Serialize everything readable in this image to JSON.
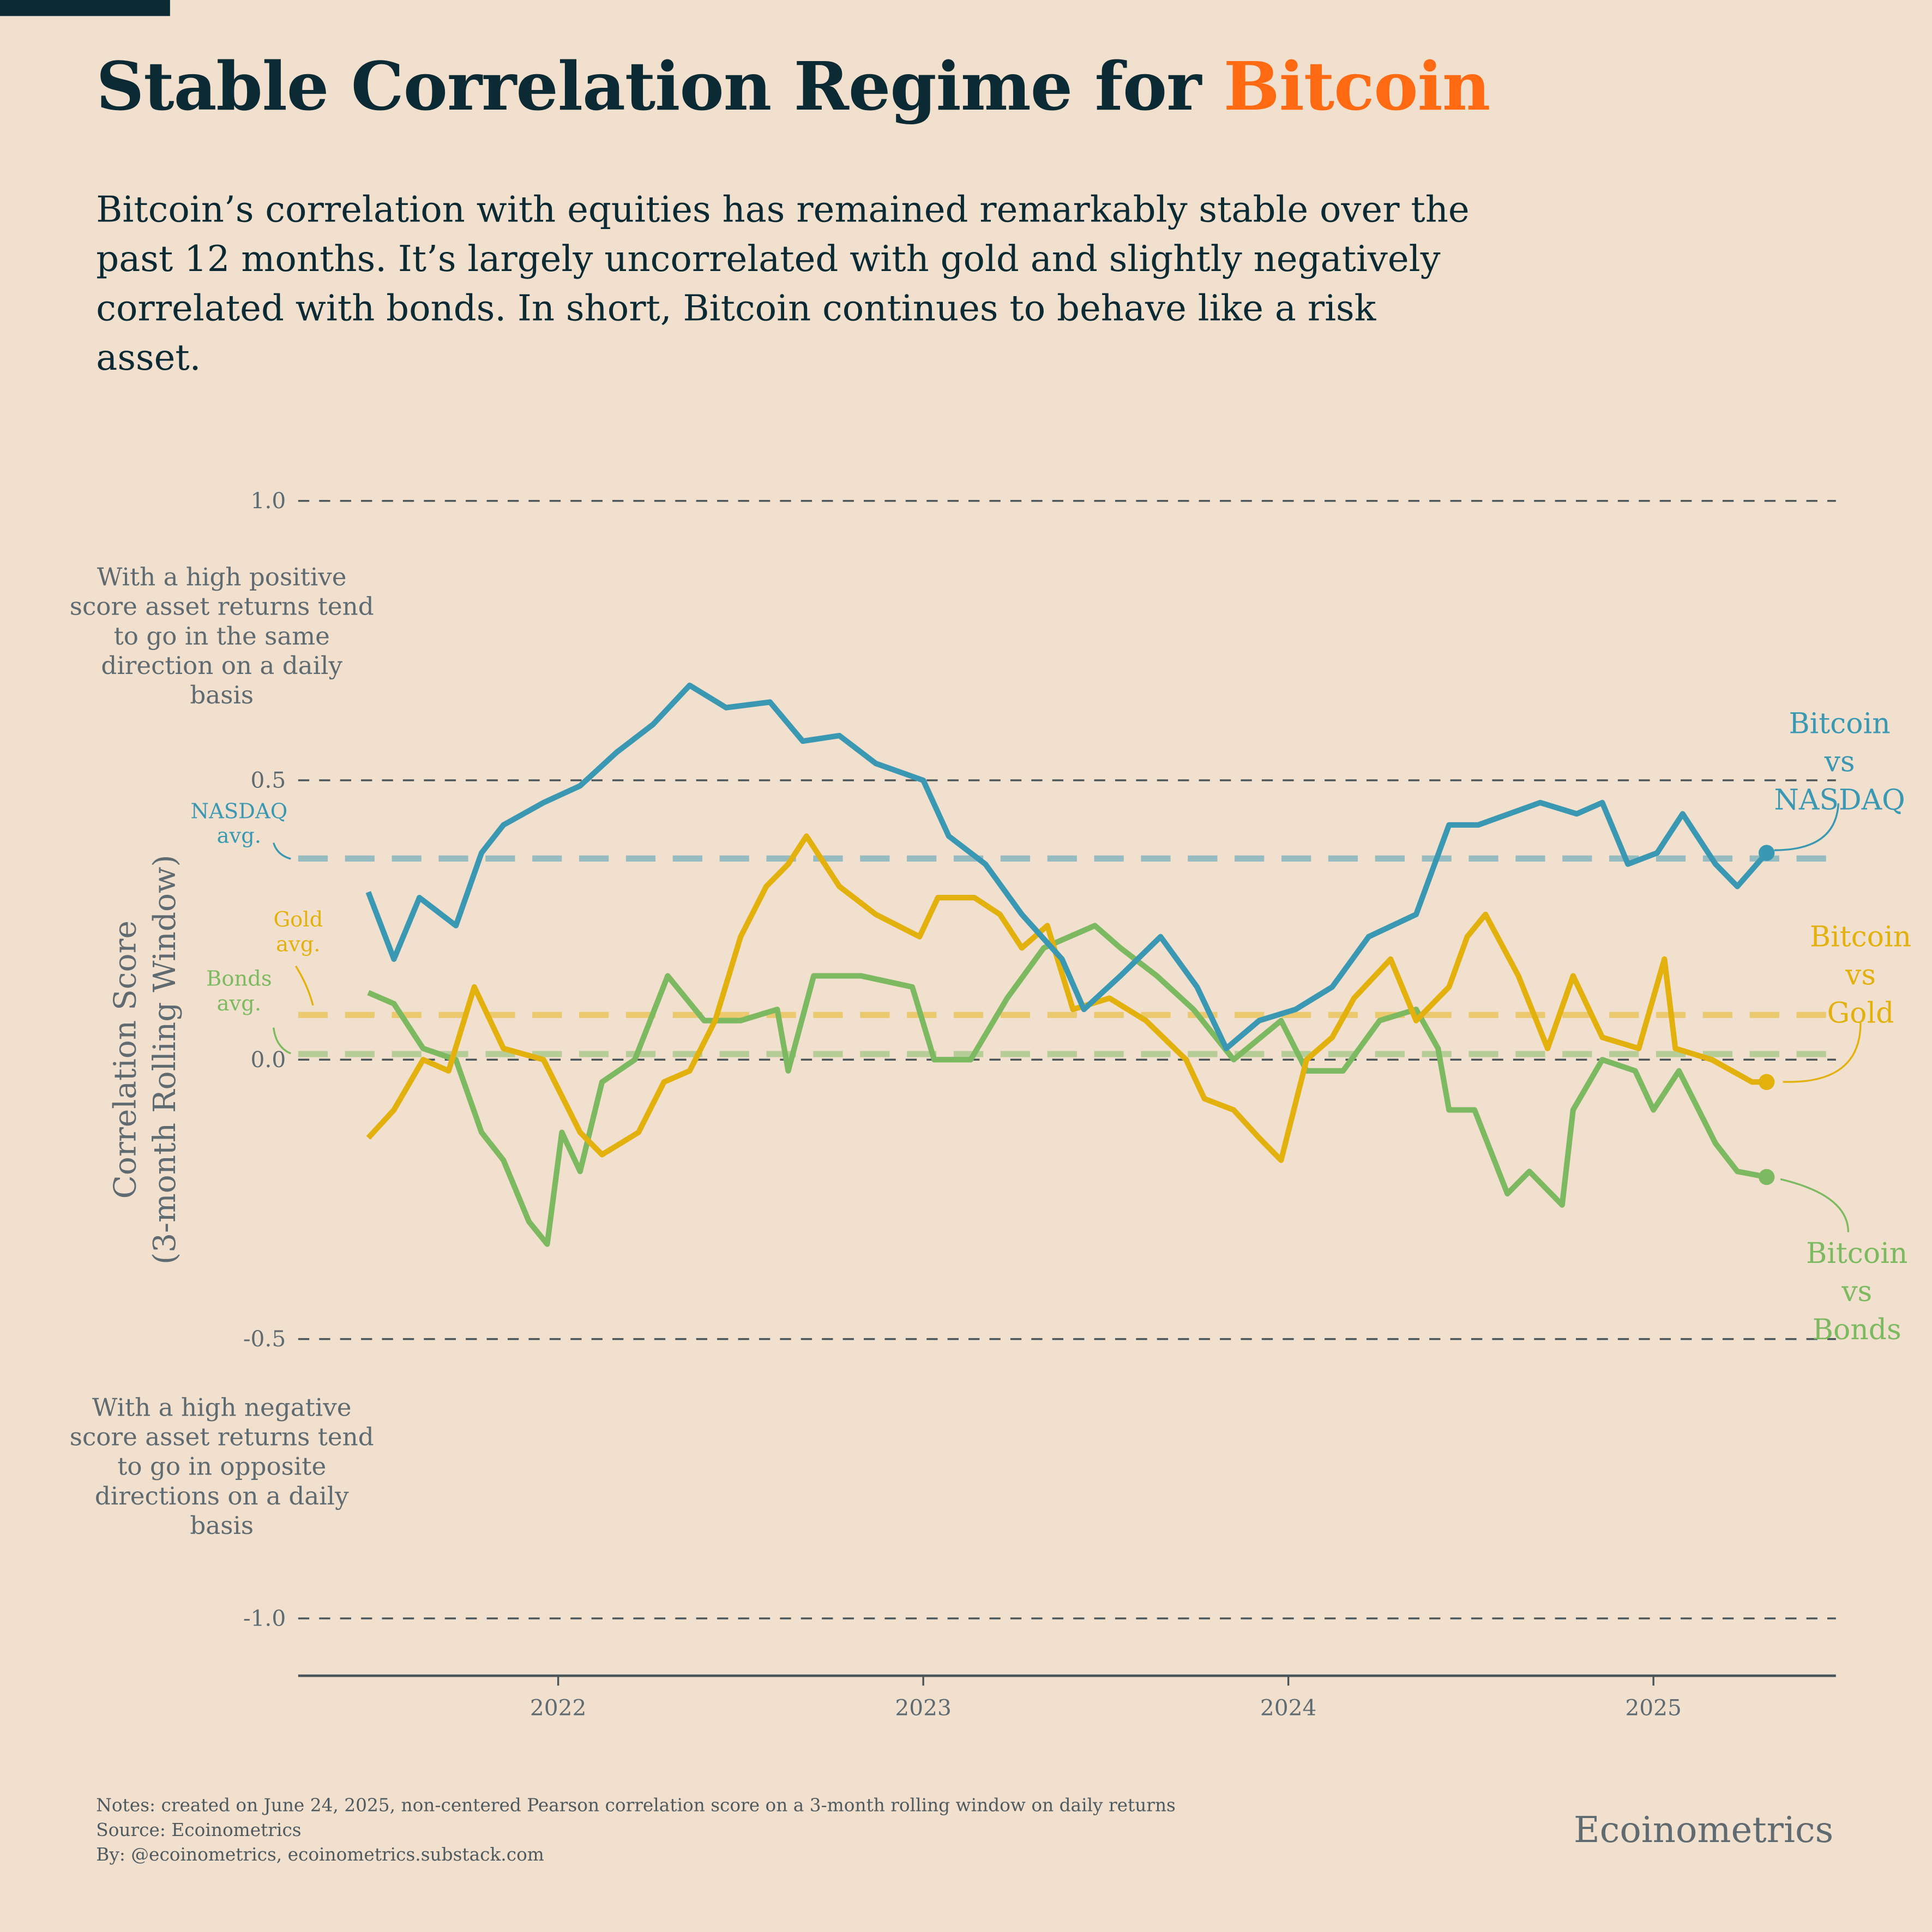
{
  "title": {
    "prefix": "Stable Correlation Regime for ",
    "highlight": "Bitcoin"
  },
  "subtitle": "Bitcoin’s correlation with equities has remained remarkably stable over the past 12 months. It’s largely uncorrelated with gold and slightly negatively correlated with bonds. In short, Bitcoin continues to behave like a risk asset.",
  "annotations": {
    "positive": "With a high positive score asset returns tend to go in the same direction on a daily basis",
    "negative": "With a high negative score asset returns tend to go in opposite directions on a daily basis"
  },
  "footer": {
    "notes": "Notes: created on June 24, 2025, non-centered Pearson correlation score on a 3-month rolling window on daily returns",
    "source": "Source: Ecoinometrics",
    "by": "By: @ecoinometrics, ecoinometrics.substack.com",
    "brand": "Ecoinometrics"
  },
  "colors": {
    "background": "#f2e0cf",
    "title": "#0b2a33",
    "highlight": "#ff6a13",
    "nasdaq": "#3a98b3",
    "gold": "#e3b10e",
    "bonds": "#7cb960"
  },
  "chart_data": {
    "type": "line",
    "ylabel": "Correlation Score\n(3-month Rolling Window)",
    "ylim": [
      -1.0,
      1.0
    ],
    "yticks": [
      1.0,
      0.5,
      0.0,
      -0.5,
      -1.0
    ],
    "ytick_labels": [
      "1.0",
      "0.5",
      "0.0",
      "-0.5",
      "-1.0"
    ],
    "xticks": [
      2022,
      2023,
      2024,
      2025
    ],
    "xtick_labels": [
      "2022",
      "2023",
      "2024",
      "2025"
    ],
    "xlim": [
      2021.3,
      2025.5
    ],
    "grid": "horizontal dashed",
    "series": [
      {
        "key": "nasdaq",
        "name": "Bitcoin vs NASDAQ",
        "avg_label": "NASDAQ avg.",
        "avg": 0.36,
        "x": [
          2021.48,
          2021.55,
          2021.62,
          2021.72,
          2021.79,
          2021.85,
          2021.96,
          2022.06,
          2022.16,
          2022.26,
          2022.36,
          2022.46,
          2022.58,
          2022.67,
          2022.77,
          2022.87,
          2023.0,
          2023.07,
          2023.17,
          2023.27,
          2023.38,
          2023.44,
          2023.54,
          2023.65,
          2023.75,
          2023.83,
          2023.92,
          2024.02,
          2024.12,
          2024.22,
          2024.35,
          2024.44,
          2024.52,
          2024.69,
          2024.79,
          2024.86,
          2024.93,
          2025.01,
          2025.08,
          2025.17,
          2025.23,
          2025.31
        ],
        "y": [
          0.3,
          0.18,
          0.29,
          0.24,
          0.37,
          0.42,
          0.46,
          0.49,
          0.55,
          0.6,
          0.67,
          0.63,
          0.64,
          0.57,
          0.58,
          0.53,
          0.5,
          0.4,
          0.35,
          0.26,
          0.18,
          0.09,
          0.15,
          0.22,
          0.13,
          0.02,
          0.07,
          0.09,
          0.13,
          0.22,
          0.26,
          0.42,
          0.42,
          0.46,
          0.44,
          0.46,
          0.35,
          0.37,
          0.44,
          0.35,
          0.31,
          0.37
        ]
      },
      {
        "key": "gold",
        "name": "Bitcoin vs Gold",
        "avg_label": "Gold avg.",
        "avg": 0.08,
        "x": [
          2021.48,
          2021.55,
          2021.63,
          2021.7,
          2021.77,
          2021.85,
          2021.96,
          2022.06,
          2022.12,
          2022.22,
          2022.29,
          2022.36,
          2022.43,
          2022.5,
          2022.57,
          2022.63,
          2022.68,
          2022.77,
          2022.87,
          2022.99,
          2023.04,
          2023.14,
          2023.21,
          2023.27,
          2023.34,
          2023.41,
          2023.51,
          2023.61,
          2023.72,
          2023.77,
          2023.85,
          2023.92,
          2023.98,
          2024.05,
          2024.12,
          2024.18,
          2024.28,
          2024.35,
          2024.44,
          2024.49,
          2024.54,
          2024.63,
          2024.71,
          2024.78,
          2024.86,
          2024.96,
          2025.03,
          2025.06,
          2025.16,
          2025.27,
          2025.31
        ],
        "y": [
          -0.14,
          -0.09,
          0.0,
          -0.02,
          0.13,
          0.02,
          0.0,
          -0.13,
          -0.17,
          -0.13,
          -0.04,
          -0.02,
          0.07,
          0.22,
          0.31,
          0.35,
          0.4,
          0.31,
          0.26,
          0.22,
          0.29,
          0.29,
          0.26,
          0.2,
          0.24,
          0.09,
          0.11,
          0.07,
          0.0,
          -0.07,
          -0.09,
          -0.14,
          -0.18,
          0.0,
          0.04,
          0.11,
          0.18,
          0.07,
          0.13,
          0.22,
          0.26,
          0.15,
          0.02,
          0.15,
          0.04,
          0.02,
          0.18,
          0.02,
          0.0,
          -0.04,
          -0.04
        ]
      },
      {
        "key": "bonds",
        "name": "Bitcoin vs Bonds",
        "avg_label": "Bonds avg.",
        "avg": 0.01,
        "x": [
          2021.48,
          2021.55,
          2021.63,
          2021.72,
          2021.79,
          2021.85,
          2021.92,
          2021.97,
          2022.01,
          2022.06,
          2022.12,
          2022.21,
          2022.3,
          2022.4,
          2022.5,
          2022.6,
          2022.63,
          2022.7,
          2022.83,
          2022.97,
          2023.03,
          2023.13,
          2023.23,
          2023.33,
          2023.47,
          2023.54,
          2023.64,
          2023.74,
          2023.85,
          2023.98,
          2024.05,
          2024.15,
          2024.25,
          2024.35,
          2024.41,
          2024.44,
          2024.51,
          2024.6,
          2024.66,
          2024.75,
          2024.78,
          2024.86,
          2024.95,
          2025.0,
          2025.07,
          2025.17,
          2025.23,
          2025.31
        ],
        "y": [
          0.12,
          0.1,
          0.02,
          0.0,
          -0.13,
          -0.18,
          -0.29,
          -0.33,
          -0.13,
          -0.2,
          -0.04,
          0.0,
          0.15,
          0.07,
          0.07,
          0.09,
          -0.02,
          0.15,
          0.15,
          0.13,
          0.0,
          0.0,
          0.11,
          0.2,
          0.24,
          0.2,
          0.15,
          0.09,
          0.0,
          0.07,
          -0.02,
          -0.02,
          0.07,
          0.09,
          0.02,
          -0.09,
          -0.09,
          -0.24,
          -0.2,
          -0.26,
          -0.09,
          0.0,
          -0.02,
          -0.09,
          -0.02,
          -0.15,
          -0.2,
          -0.21
        ]
      }
    ],
    "end_labels": {
      "nasdaq": [
        "Bitcoin",
        "vs",
        "NASDAQ"
      ],
      "gold": [
        "Bitcoin",
        "vs",
        "Gold"
      ],
      "bonds": [
        "Bitcoin",
        "vs",
        "Bonds"
      ]
    },
    "avg_labels": {
      "nasdaq": [
        "NASDAQ",
        "avg."
      ],
      "gold": [
        "Gold",
        "avg."
      ],
      "bonds": [
        "Bonds",
        "avg."
      ]
    }
  }
}
